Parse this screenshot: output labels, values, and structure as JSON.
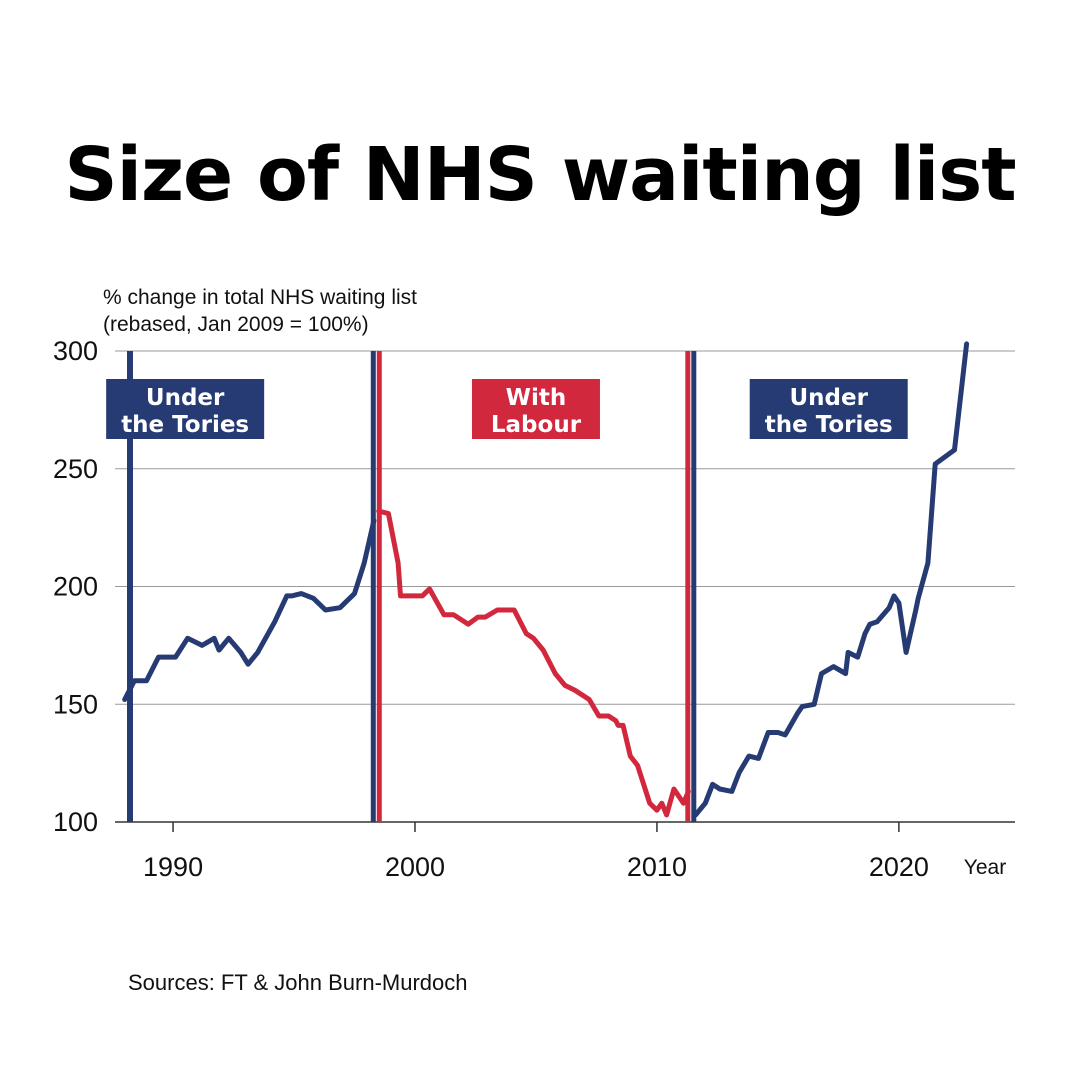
{
  "chart_data": {
    "type": "line",
    "title": "Size of NHS waiting list",
    "ylabel_line1": "% change in total NHS waiting list",
    "ylabel_line2": "(rebased, Jan 2009 = 100%)",
    "xlabel": "Year",
    "ylim": [
      100,
      300
    ],
    "xlim": [
      1987.6,
      2024.8
    ],
    "yticks": [
      100,
      150,
      200,
      250,
      300
    ],
    "xticks": [
      1990,
      2000,
      2010,
      2020
    ],
    "grid": "horizontal",
    "periods": [
      {
        "label_line1": "Under",
        "label_line2": "the Tories",
        "color": "#263a73",
        "start": 1987.6,
        "end": 1998.4,
        "label_center": 1990.5
      },
      {
        "label_line1": "With",
        "label_line2": "Labour",
        "color": "#d2283e",
        "start": 1998.4,
        "end": 2011.4,
        "label_center": 2005.0
      },
      {
        "label_line1": "Under",
        "label_line2": "the Tories",
        "color": "#263a73",
        "start": 2011.4,
        "end": 2024.8,
        "label_center": 2017.1
      }
    ],
    "series": [
      {
        "color": "#263a73",
        "x": [
          1988.0,
          1988.4,
          1988.9,
          1989.4,
          1989.7,
          1990.1,
          1990.6,
          1991.2,
          1991.7,
          1991.9,
          1992.3,
          1992.8,
          1993.1,
          1993.5,
          1994.2,
          1994.7,
          1994.9,
          1995.3,
          1995.8,
          1996.3,
          1996.9,
          1997.5,
          1997.9,
          1998.3
        ],
        "values": [
          152,
          160,
          160,
          170,
          170,
          170,
          178,
          175,
          178,
          173,
          178,
          172,
          167,
          172,
          185,
          196,
          196,
          197,
          195,
          190,
          191,
          197,
          210,
          228
        ]
      },
      {
        "color": "#d2283e",
        "x": [
          1998.5,
          1998.9,
          1999.3,
          1999.4,
          1999.9,
          2000.3,
          2000.6,
          2001.2,
          2001.6,
          2002.2,
          2002.6,
          2002.9,
          2003.4,
          2003.7,
          2004.1,
          2004.6,
          2004.9,
          2005.3,
          2005.8,
          2006.2,
          2006.6,
          2007.2,
          2007.6,
          2008.0,
          2008.3,
          2008.4,
          2008.6,
          2008.9,
          2009.2,
          2009.7,
          2010.0,
          2010.2,
          2010.4,
          2010.7,
          2011.1,
          2011.3
        ],
        "values": [
          232,
          231,
          210,
          196,
          196,
          196,
          199,
          188,
          188,
          184,
          187,
          187,
          190,
          190,
          190,
          180,
          178,
          173,
          163,
          158,
          156,
          152,
          145,
          145,
          143,
          141,
          141,
          128,
          124,
          108,
          105,
          108,
          103,
          114,
          108,
          113
        ]
      },
      {
        "color": "#263a73",
        "x": [
          2011.6,
          2012.0,
          2012.3,
          2012.6,
          2013.1,
          2013.4,
          2013.8,
          2014.2,
          2014.6,
          2015.0,
          2015.3,
          2015.8,
          2016.0,
          2016.5,
          2016.8,
          2017.3,
          2017.8,
          2017.9,
          2018.3,
          2018.6,
          2018.8,
          2019.1,
          2019.6,
          2019.8,
          2020.0,
          2020.3,
          2020.7,
          2020.8,
          2021.2,
          2021.5,
          2022.3
        ],
        "values": [
          103,
          108,
          116,
          114,
          113,
          121,
          128,
          127,
          138,
          138,
          137,
          146,
          149,
          150,
          163,
          166,
          163,
          172,
          170,
          180,
          184,
          185,
          191,
          196,
          193,
          172,
          190,
          195,
          210,
          252,
          258
        ]
      },
      {
        "color": "#263a73",
        "x": [
          2022.3,
          2022.8
        ],
        "values": [
          258,
          303
        ]
      }
    ]
  },
  "footer": {
    "source": "Sources: FT & John Burn-Murdoch"
  }
}
